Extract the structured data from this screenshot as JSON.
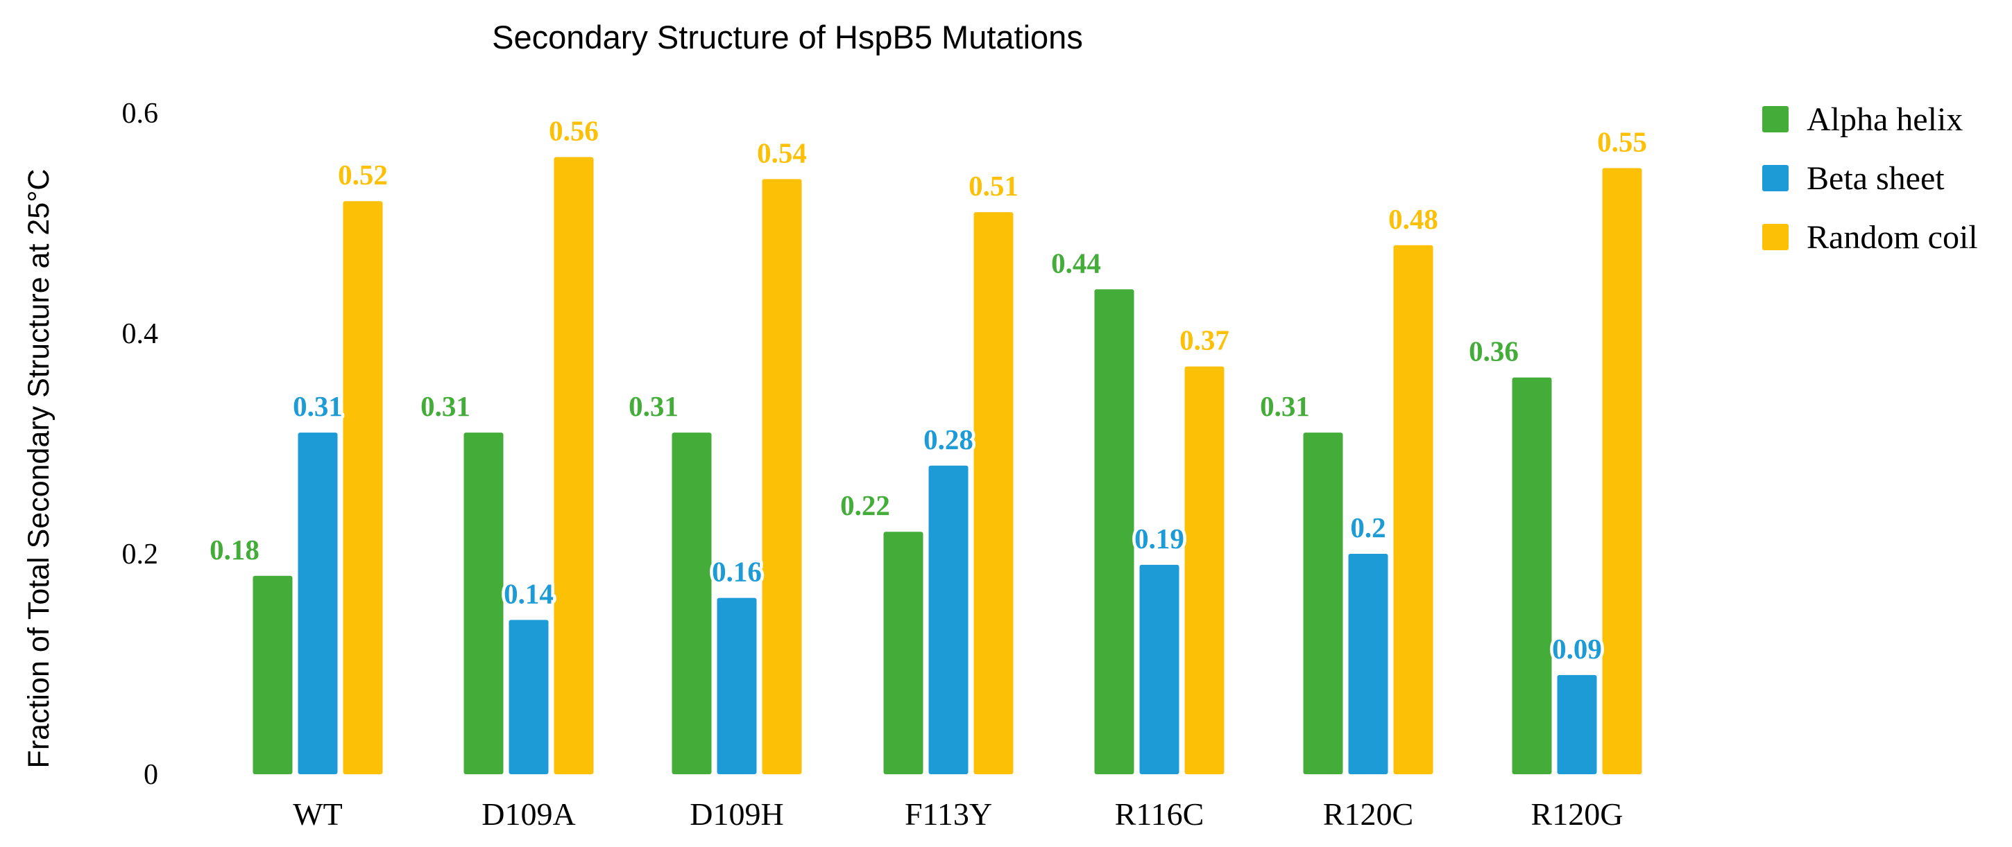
{
  "chart_data": {
    "type": "bar",
    "title": "Secondary Structure of HspB5 Mutations",
    "xlabel": "",
    "ylabel": "Fraction of Total Secondary Structure at 25°C",
    "ylim": [
      0,
      0.6
    ],
    "yticks": [
      0,
      0.2,
      0.4,
      0.6
    ],
    "ytick_labels": [
      "0",
      "0.2",
      "0.4",
      "0.6"
    ],
    "grid": false,
    "legend_position": "top-right",
    "categories": [
      "WT",
      "D109A",
      "D109H",
      "F113Y",
      "R116C",
      "R120C",
      "R120G"
    ],
    "series": [
      {
        "name": "Alpha helix",
        "color": "#44ad3a",
        "values": [
          0.18,
          0.31,
          0.31,
          0.22,
          0.44,
          0.31,
          0.36
        ],
        "labels": [
          "0.18",
          "0.31",
          "0.31",
          "0.22",
          "0.44",
          "0.31",
          "0.36"
        ]
      },
      {
        "name": "Beta sheet",
        "color": "#1c9bd7",
        "values": [
          0.31,
          0.14,
          0.16,
          0.28,
          0.19,
          0.2,
          0.09
        ],
        "labels": [
          "0.31",
          "0.14",
          "0.16",
          "0.28",
          "0.19",
          "0.2",
          "0.09"
        ]
      },
      {
        "name": "Random coil",
        "color": "#fcc007",
        "values": [
          0.52,
          0.56,
          0.54,
          0.51,
          0.37,
          0.48,
          0.55
        ],
        "labels": [
          "0.52",
          "0.56",
          "0.54",
          "0.51",
          "0.37",
          "0.48",
          "0.55"
        ]
      }
    ]
  }
}
